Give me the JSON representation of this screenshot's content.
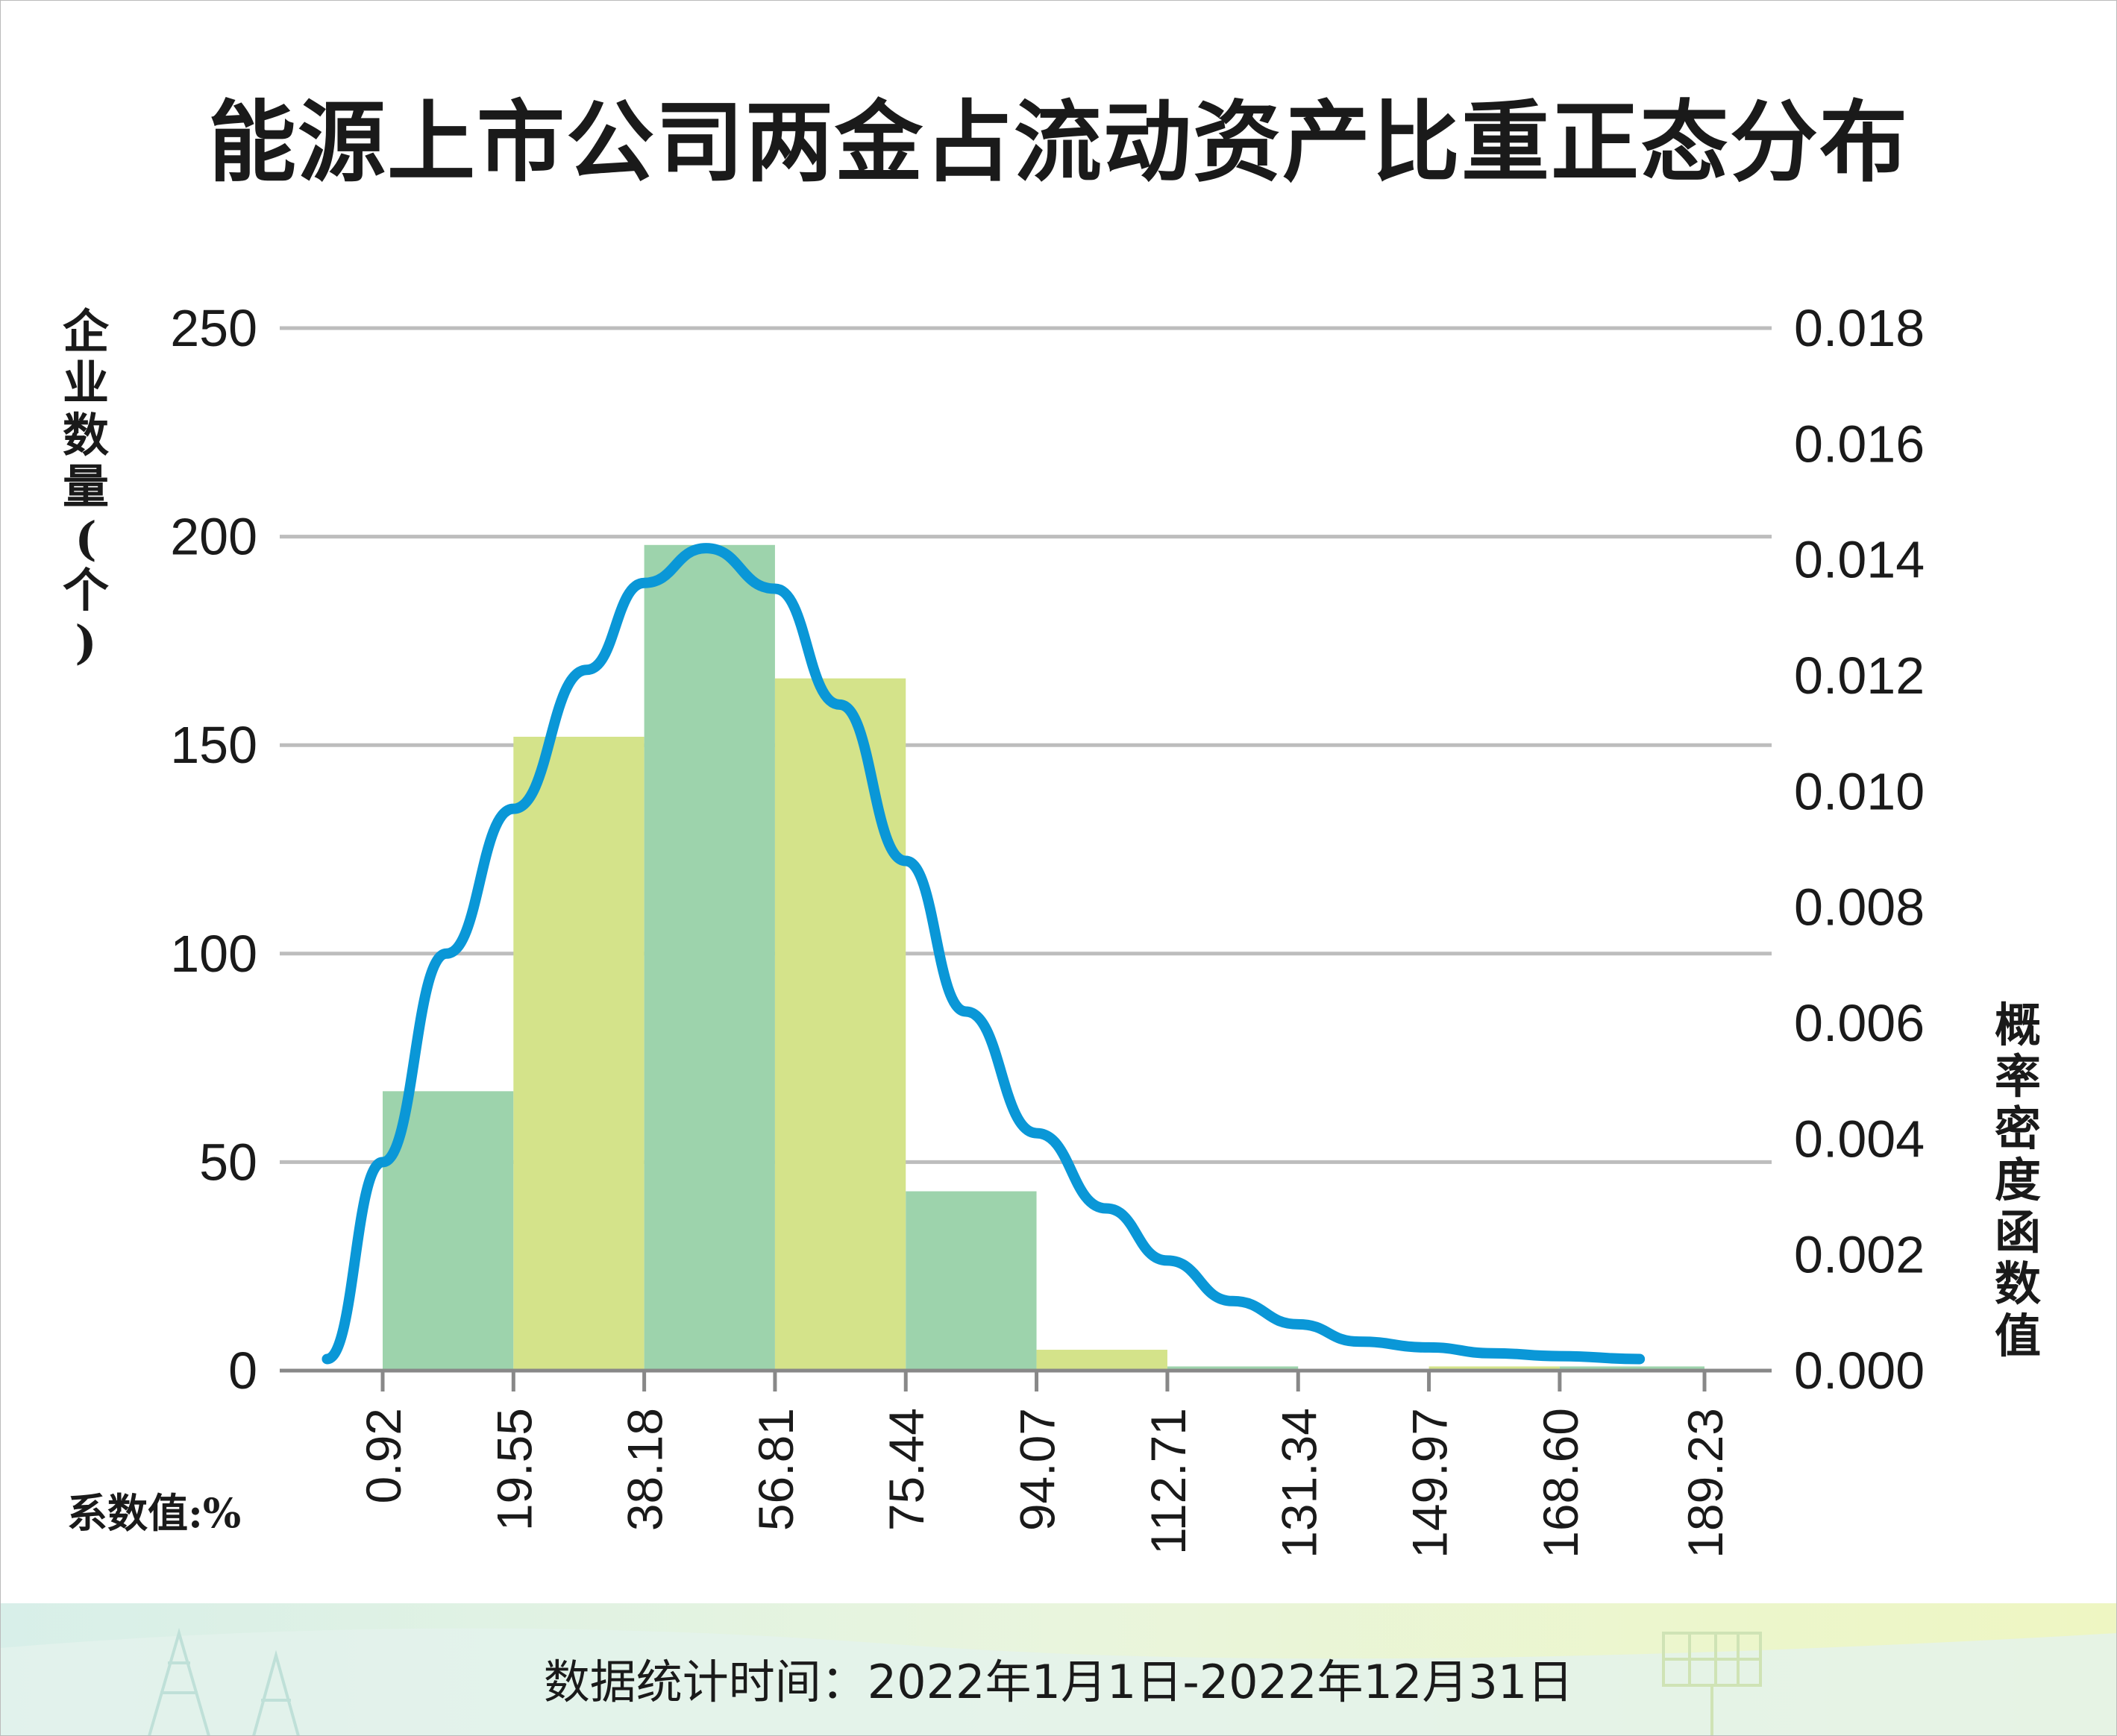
{
  "title": "能源上市公司两金占流动资产比重正态分布",
  "y_left_label": "企\n业\n数\n量\n(\n个\n)",
  "y_right_label": "概\n率\n密\n度\n函\n数\n值",
  "x_unit_label": "系数值:%",
  "footer": "数据统计时间：2022年1月1日-2022年12月31日",
  "colors": {
    "bar_green": "#9dd3ac",
    "bar_yellow": "#d4e38a",
    "curve": "#0a97d7",
    "grid": "#bdbdbd",
    "axis": "#888888",
    "band_top": "#dff1ea",
    "band_bottom": "#eef6c6"
  },
  "chart_data": {
    "type": "bar",
    "subtype": "histogram_with_density_curve",
    "title": "能源上市公司两金占流动资产比重正态分布",
    "x_ticks": [
      "0.92",
      "19.55",
      "38.18",
      "56.81",
      "75.44",
      "94.07",
      "112.71",
      "131.34",
      "149.97",
      "168.60",
      "189.23"
    ],
    "bins": [
      {
        "from": 0.92,
        "to": 19.55,
        "count": 67,
        "color": "green"
      },
      {
        "from": 19.55,
        "to": 38.18,
        "count": 152,
        "color": "yellow"
      },
      {
        "from": 38.18,
        "to": 56.81,
        "count": 198,
        "color": "green"
      },
      {
        "from": 56.81,
        "to": 75.44,
        "count": 166,
        "color": "yellow"
      },
      {
        "from": 75.44,
        "to": 94.07,
        "count": 43,
        "color": "green"
      },
      {
        "from": 94.07,
        "to": 112.71,
        "count": 5,
        "color": "yellow"
      },
      {
        "from": 112.71,
        "to": 131.34,
        "count": 1,
        "color": "green"
      },
      {
        "from": 131.34,
        "to": 149.97,
        "count": 0,
        "color": "yellow"
      },
      {
        "from": 149.97,
        "to": 168.6,
        "count": 1,
        "color": "yellow"
      },
      {
        "from": 168.6,
        "to": 189.23,
        "count": 1,
        "color": "green"
      }
    ],
    "y_left": {
      "label": "企业数量(个)",
      "range": [
        0,
        250
      ],
      "ticks": [
        "0",
        "50",
        "100",
        "150",
        "200",
        "250"
      ]
    },
    "y_right": {
      "label": "概率密度函数值",
      "range": [
        0,
        0.018
      ],
      "ticks": [
        "0.000",
        "0.002",
        "0.004",
        "0.006",
        "0.008",
        "0.010",
        "0.012",
        "0.014",
        "0.016",
        "0.018"
      ]
    },
    "x_label": "系数值:%",
    "density_curve": {
      "x": [
        -7,
        0.92,
        10,
        19.55,
        30,
        38.18,
        47,
        56.81,
        66,
        75.44,
        84,
        94.07,
        104,
        112.71,
        122,
        131.34,
        140,
        149.97,
        159,
        168.6,
        180
      ],
      "y": [
        0.0002,
        0.0036,
        0.0072,
        0.0097,
        0.0121,
        0.0136,
        0.0142,
        0.0135,
        0.0115,
        0.0088,
        0.0062,
        0.0041,
        0.0028,
        0.0019,
        0.0012,
        0.0008,
        0.0005,
        0.0004,
        0.0003,
        0.00025,
        0.0002
      ]
    },
    "grid": "horizontal",
    "legend": "none"
  }
}
